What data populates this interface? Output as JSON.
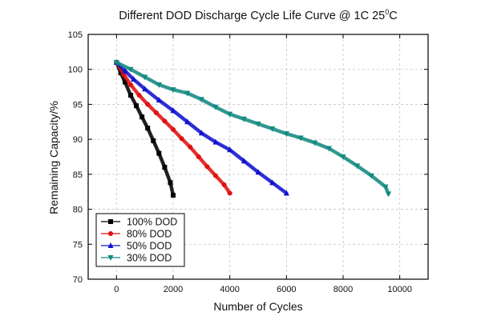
{
  "chart_data": {
    "type": "line",
    "title": "Different DOD Discharge Cycle Life Curve @ 1C 25",
    "title_superscript": "0",
    "title_suffix": "C",
    "xlabel": "Number of Cycles",
    "ylabel": "Remaining Capacity/%",
    "xlim": [
      -1000,
      11000
    ],
    "ylim": [
      70,
      105
    ],
    "xticks": [
      0,
      2000,
      4000,
      6000,
      8000,
      10000
    ],
    "yticks": [
      70,
      75,
      80,
      85,
      90,
      95,
      100,
      105
    ],
    "grid": true,
    "legend_position": "bottom-left",
    "series": [
      {
        "name": "100% DOD",
        "color": "#000000",
        "marker": "square",
        "x": [
          0,
          150,
          300,
          500,
          700,
          900,
          1100,
          1300,
          1500,
          1700,
          1900,
          2000
        ],
        "y": [
          101,
          99.5,
          98.2,
          96.3,
          94.8,
          93.2,
          91.6,
          89.8,
          88.0,
          86.0,
          83.8,
          82.0
        ]
      },
      {
        "name": "80% DOD",
        "color": "#e01010",
        "marker": "circle",
        "x": [
          0,
          250,
          500,
          800,
          1100,
          1400,
          1700,
          2000,
          2300,
          2600,
          2900,
          3200,
          3500,
          3800,
          4000
        ],
        "y": [
          101,
          99.3,
          97.8,
          96.3,
          95.0,
          93.8,
          92.6,
          91.4,
          90.1,
          88.9,
          87.5,
          86.1,
          84.8,
          83.5,
          82.3
        ]
      },
      {
        "name": "50% DOD",
        "color": "#1010d0",
        "marker": "triangle-up",
        "x": [
          0,
          300,
          600,
          1000,
          1500,
          2000,
          2500,
          3000,
          3500,
          4000,
          4500,
          5000,
          5500,
          6000
        ],
        "y": [
          101,
          99.8,
          98.6,
          97.2,
          95.6,
          94.1,
          92.5,
          90.9,
          89.6,
          88.5,
          86.9,
          85.3,
          83.8,
          82.3
        ]
      },
      {
        "name": "30% DOD",
        "color": "#138a80",
        "marker": "triangle-down",
        "x": [
          0,
          500,
          1000,
          1500,
          2000,
          2500,
          3000,
          3500,
          4000,
          4500,
          5000,
          5500,
          6000,
          6500,
          7000,
          7500,
          8000,
          8500,
          9000,
          9500,
          9600
        ],
        "y": [
          101,
          100.0,
          98.9,
          97.8,
          97.1,
          96.6,
          95.7,
          94.6,
          93.6,
          92.9,
          92.2,
          91.5,
          90.8,
          90.2,
          89.5,
          88.7,
          87.5,
          86.2,
          84.8,
          83.2,
          82.2
        ]
      }
    ]
  }
}
